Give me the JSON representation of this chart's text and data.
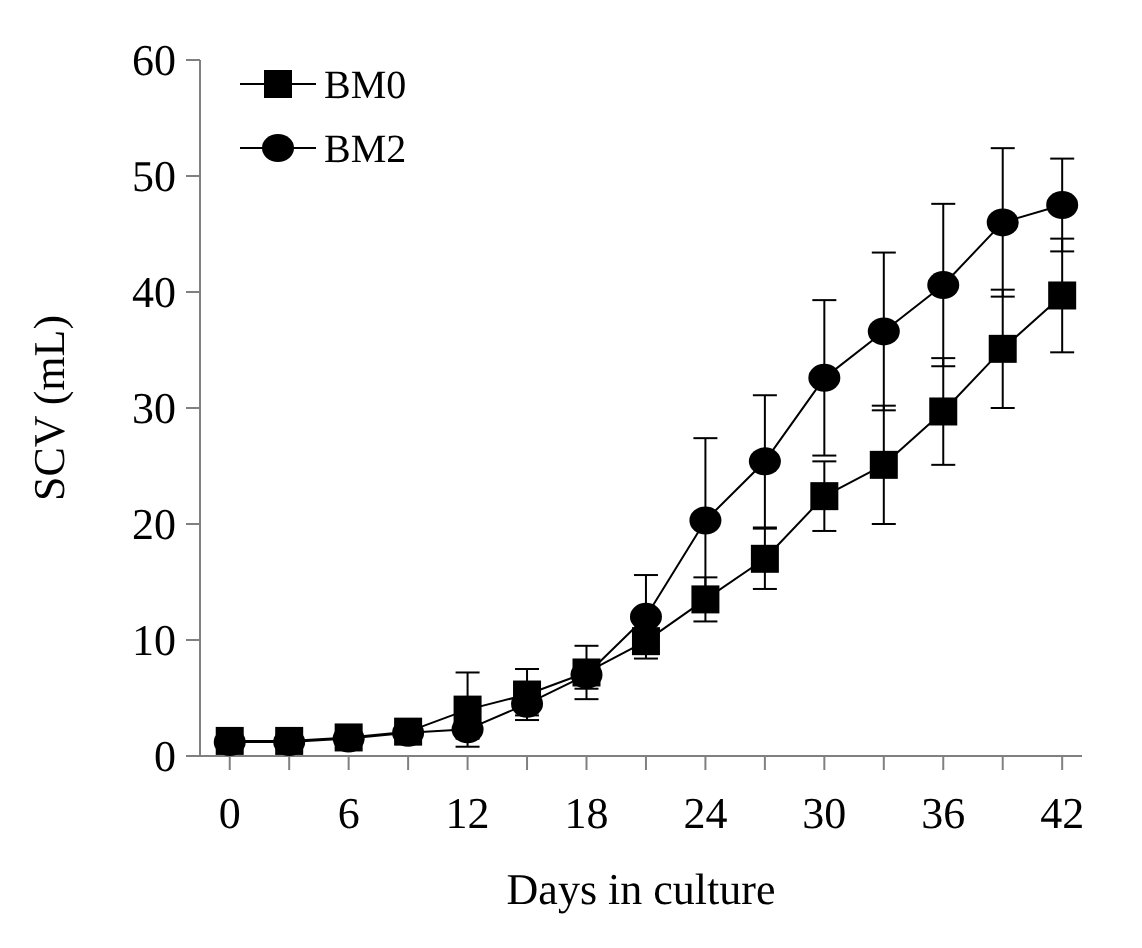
{
  "chart_data": {
    "type": "line",
    "xlabel": "Days in culture",
    "ylabel": "SCV (mL)",
    "x": [
      0,
      3,
      6,
      9,
      12,
      15,
      18,
      21,
      24,
      27,
      30,
      33,
      36,
      39,
      42
    ],
    "xlim": [
      -1.5,
      43
    ],
    "xticks": [
      0,
      {
        "value": 3,
        "label": null
      },
      6,
      {
        "value": 9,
        "label": null
      },
      12,
      {
        "value": 15,
        "label": null
      },
      18,
      {
        "value": 21,
        "label": null
      },
      24,
      {
        "value": 27,
        "label": null
      },
      30,
      {
        "value": 33,
        "label": null
      },
      36,
      {
        "value": 39,
        "label": null
      },
      42
    ],
    "ylim": [
      0,
      60
    ],
    "yticks": [
      0,
      10,
      20,
      30,
      40,
      50,
      60
    ],
    "grid": false,
    "legend": "top left",
    "line_style": "solid",
    "series": [
      {
        "name": "BM0",
        "color": "#000000",
        "marker": "square",
        "values": [
          1.3,
          1.3,
          1.6,
          2.1,
          4.0,
          5.3,
          7.2,
          9.9,
          13.5,
          17.0,
          22.4,
          25.1,
          29.7,
          35.1,
          39.7
        ],
        "errors": [
          null,
          null,
          0.3,
          0.5,
          3.2,
          2.2,
          2.3,
          0.8,
          1.9,
          2.6,
          3.0,
          5.1,
          4.6,
          5.1,
          4.9
        ]
      },
      {
        "name": "BM2",
        "color": "#000000",
        "marker": "circle",
        "values": [
          1.2,
          1.2,
          1.5,
          2.0,
          2.3,
          4.5,
          7.0,
          12.0,
          20.3,
          25.4,
          32.6,
          36.6,
          40.6,
          46.0,
          47.5
        ],
        "errors": [
          null,
          null,
          0.3,
          0.5,
          0.8,
          1.0,
          1.2,
          3.6,
          7.1,
          5.7,
          6.7,
          6.8,
          7.0,
          6.4,
          4.0
        ]
      }
    ]
  }
}
